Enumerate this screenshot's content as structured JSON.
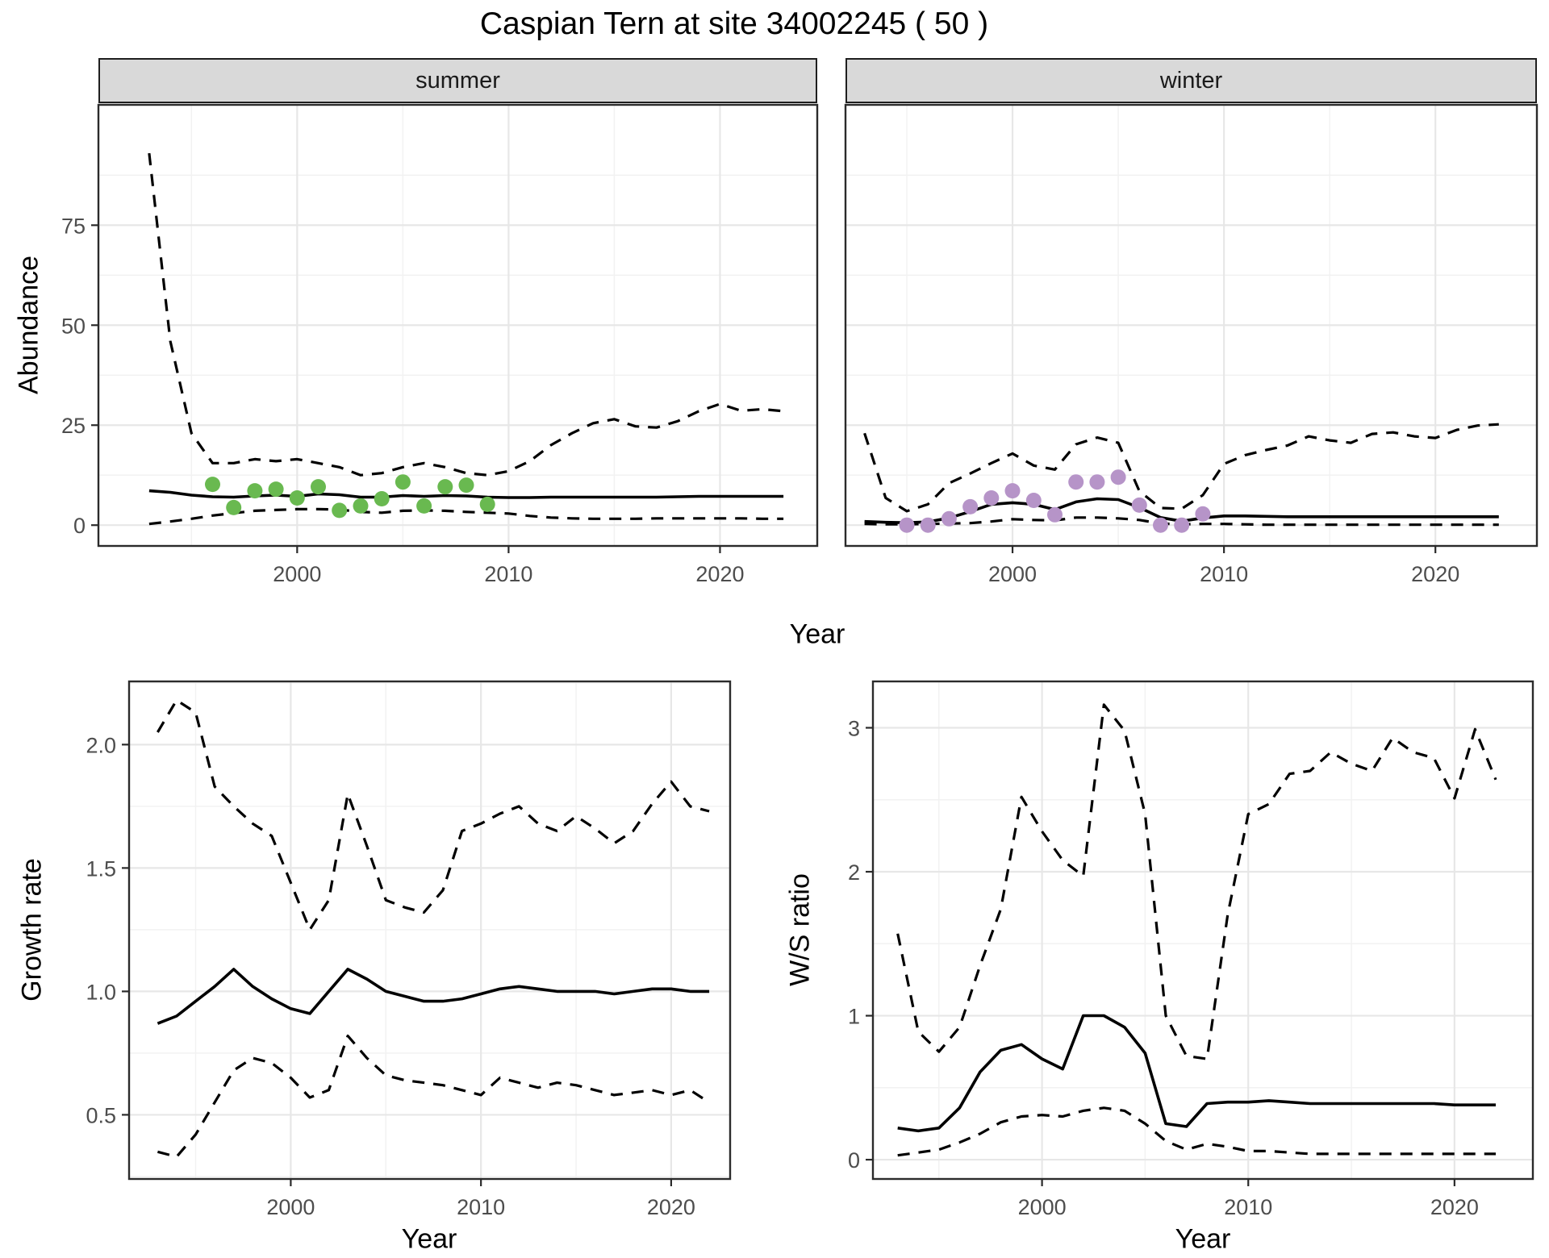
{
  "page": {
    "title": "Caspian Tern at site 34002245 ( 50 )",
    "background": "#ffffff"
  },
  "facets": {
    "summer": "summer",
    "winter": "winter"
  },
  "axis_titles": {
    "abundance": "Abundance",
    "year_top": "Year",
    "growth": "Growth rate",
    "ws": "W/S ratio",
    "year_bottom_left": "Year",
    "year_bottom_right": "Year"
  },
  "colors": {
    "summer_points": "#69b950",
    "winter_points": "#b694c8",
    "line": "#000000",
    "grid_major": "#e7e7e7",
    "grid_minor": "#f2f2f2",
    "panel_border": "#2b2b2b",
    "strip_fill": "#d9d9d9",
    "tick_label": "#4d4d4d"
  },
  "chart_data": [
    {
      "type": "line",
      "panel": "abundance-summer",
      "facet_label": "summer",
      "xlabel": "Year",
      "ylabel": "Abundance",
      "xlim": [
        1990.6,
        2024.6
      ],
      "ylim": [
        -5.2,
        105.1
      ],
      "xticks": {
        "values": [
          2000,
          2010,
          2020
        ],
        "labels": [
          "2000",
          "2010",
          "2020"
        ]
      },
      "yticks": {
        "values": [
          0,
          25,
          50,
          75
        ],
        "labels": [
          "0",
          "25",
          "50",
          "75"
        ]
      },
      "x_minor": [
        1995,
        2005,
        2015
      ],
      "y_minor": [
        12.5,
        37.5,
        62.5,
        87.5
      ],
      "x": [
        1993,
        1994,
        1995,
        1996,
        1997,
        1998,
        1999,
        2000,
        2001,
        2002,
        2003,
        2004,
        2005,
        2006,
        2007,
        2008,
        2009,
        2010,
        2011,
        2012,
        2013,
        2014,
        2015,
        2016,
        2017,
        2018,
        2019,
        2020,
        2021,
        2022,
        2023
      ],
      "series": [
        {
          "name": "upper-ci",
          "style": "dashed",
          "values": [
            93,
            46,
            23,
            15.5,
            15.5,
            16.5,
            16,
            16.5,
            15.5,
            14.5,
            12.5,
            13,
            14.5,
            15.5,
            14.5,
            13,
            12.5,
            13.5,
            16,
            20,
            23,
            25.5,
            26.5,
            24.7,
            24.4,
            26,
            28.5,
            30.3,
            28.6,
            29,
            28.5
          ]
        },
        {
          "name": "median",
          "style": "solid",
          "values": [
            8.6,
            8.2,
            7.5,
            7.1,
            7.0,
            7.3,
            7.5,
            7.2,
            7.8,
            7.6,
            7.0,
            7.0,
            7.4,
            7.2,
            7.4,
            7.3,
            7.0,
            6.9,
            6.9,
            7.0,
            7.0,
            7.0,
            7.0,
            7.0,
            7.0,
            7.1,
            7.2,
            7.2,
            7.2,
            7.2,
            7.2
          ]
        },
        {
          "name": "lower-ci",
          "style": "dashed",
          "values": [
            0.3,
            0.9,
            1.6,
            2.4,
            3.0,
            3.6,
            3.8,
            4.0,
            4.0,
            3.9,
            3.3,
            3.1,
            3.6,
            3.7,
            3.6,
            3.3,
            3.1,
            2.9,
            2.3,
            1.9,
            1.7,
            1.6,
            1.6,
            1.6,
            1.7,
            1.7,
            1.7,
            1.7,
            1.7,
            1.6,
            1.6
          ]
        }
      ],
      "points": {
        "name": "observed-counts",
        "color_key": "summer_points",
        "x": [
          1996,
          1997,
          1998,
          1999,
          2000,
          2001,
          2002,
          2003,
          2004,
          2005,
          2006,
          2007,
          2008,
          2009
        ],
        "y": [
          10.2,
          4.4,
          8.6,
          9.0,
          6.8,
          9.6,
          3.7,
          4.8,
          6.6,
          10.8,
          4.8,
          9.6,
          10.0,
          5.2
        ]
      }
    },
    {
      "type": "line",
      "panel": "abundance-winter",
      "facet_label": "winter",
      "xlabel": "Year",
      "ylabel": "Abundance",
      "xlim": [
        1992.1,
        2024.8
      ],
      "ylim": [
        -5.2,
        105.1
      ],
      "xticks": {
        "values": [
          2000,
          2010,
          2020
        ],
        "labels": [
          "2000",
          "2010",
          "2020"
        ]
      },
      "yticks": {
        "values": [
          0,
          25,
          50,
          75
        ],
        "labels": [
          "0",
          "25",
          "50",
          "75"
        ]
      },
      "x_minor": [
        1995,
        2005,
        2015
      ],
      "y_minor": [
        12.5,
        37.5,
        62.5,
        87.5
      ],
      "x": [
        1993,
        1994,
        1995,
        1996,
        1997,
        1998,
        1999,
        2000,
        2001,
        2002,
        2003,
        2004,
        2005,
        2006,
        2007,
        2008,
        2009,
        2010,
        2011,
        2012,
        2013,
        2014,
        2015,
        2016,
        2017,
        2018,
        2019,
        2020,
        2021,
        2022,
        2023
      ],
      "series": [
        {
          "name": "upper-ci",
          "style": "dashed",
          "values": [
            23,
            6.8,
            3.5,
            5.2,
            10.5,
            12.9,
            15.5,
            17.9,
            14.9,
            13.9,
            20.2,
            21.9,
            20.6,
            8.5,
            4.3,
            4.1,
            7.5,
            15.3,
            17.5,
            18.8,
            19.9,
            22.2,
            21.2,
            20.6,
            22.8,
            23.2,
            22.2,
            21.8,
            23.8,
            24.9,
            25.2
          ]
        },
        {
          "name": "median",
          "style": "solid",
          "values": [
            0.9,
            0.7,
            0.6,
            0.8,
            1.8,
            3.4,
            5.2,
            5.6,
            5.2,
            3.9,
            5.8,
            6.6,
            6.4,
            4.4,
            1.9,
            1.0,
            1.8,
            2.3,
            2.3,
            2.2,
            2.1,
            2.1,
            2.1,
            2.1,
            2.1,
            2.1,
            2.1,
            2.1,
            2.1,
            2.1,
            2.1
          ]
        },
        {
          "name": "lower-ci",
          "style": "dashed",
          "values": [
            0.3,
            0.2,
            0.2,
            0.3,
            0.4,
            0.5,
            0.9,
            1.5,
            1.3,
            1.2,
            1.9,
            1.9,
            1.7,
            1.3,
            0.4,
            0.2,
            0.3,
            0.3,
            0.2,
            0.1,
            0.1,
            0.1,
            0.1,
            0.1,
            0.1,
            0.1,
            0.1,
            0.1,
            0.1,
            0.1,
            0.1
          ]
        }
      ],
      "points": {
        "name": "observed-counts",
        "color_key": "winter_points",
        "x": [
          1995,
          1996,
          1997,
          1998,
          1999,
          2000,
          2001,
          2002,
          2003,
          2004,
          2005,
          2006,
          2007,
          2008,
          2009
        ],
        "y": [
          0,
          0,
          1.6,
          4.6,
          6.8,
          8.6,
          6.2,
          2.6,
          10.8,
          10.8,
          12.0,
          5.0,
          0,
          0,
          2.8
        ]
      }
    },
    {
      "type": "line",
      "panel": "growth-rate",
      "facet_label": "",
      "xlabel": "Year",
      "ylabel": "Growth rate",
      "xlim": [
        1991.5,
        2023.1
      ],
      "ylim": [
        0.24,
        2.256
      ],
      "xticks": {
        "values": [
          2000,
          2010,
          2020
        ],
        "labels": [
          "2000",
          "2010",
          "2020"
        ]
      },
      "yticks": {
        "values": [
          0.5,
          1.0,
          1.5,
          2.0
        ],
        "labels": [
          "0.5",
          "1.0",
          "1.5",
          "2.0"
        ]
      },
      "x_minor": [
        1995,
        2005,
        2015
      ],
      "y_minor": [
        0.25,
        0.75,
        1.25,
        1.75,
        2.25
      ],
      "x": [
        1993,
        1994,
        1995,
        1996,
        1997,
        1998,
        1999,
        2000,
        2001,
        2002,
        2003,
        2004,
        2005,
        2006,
        2007,
        2008,
        2009,
        2010,
        2011,
        2012,
        2013,
        2014,
        2015,
        2016,
        2017,
        2018,
        2019,
        2020,
        2021,
        2022
      ],
      "series": [
        {
          "name": "upper-ci",
          "style": "dashed",
          "values": [
            2.05,
            2.18,
            2.13,
            1.83,
            1.75,
            1.68,
            1.63,
            1.44,
            1.25,
            1.37,
            1.8,
            1.59,
            1.37,
            1.34,
            1.32,
            1.41,
            1.65,
            1.68,
            1.72,
            1.75,
            1.68,
            1.65,
            1.71,
            1.66,
            1.6,
            1.65,
            1.76,
            1.85,
            1.75,
            1.73
          ]
        },
        {
          "name": "median",
          "style": "solid",
          "values": [
            0.87,
            0.9,
            0.96,
            1.02,
            1.09,
            1.02,
            0.97,
            0.93,
            0.91,
            1.0,
            1.09,
            1.05,
            1.0,
            0.98,
            0.96,
            0.96,
            0.97,
            0.99,
            1.01,
            1.02,
            1.01,
            1.0,
            1.0,
            1.0,
            0.99,
            1.0,
            1.01,
            1.01,
            1.0,
            1.0
          ]
        },
        {
          "name": "lower-ci",
          "style": "dashed",
          "values": [
            0.35,
            0.33,
            0.42,
            0.55,
            0.68,
            0.73,
            0.71,
            0.65,
            0.57,
            0.6,
            0.82,
            0.73,
            0.66,
            0.64,
            0.63,
            0.62,
            0.6,
            0.58,
            0.65,
            0.63,
            0.61,
            0.63,
            0.62,
            0.6,
            0.58,
            0.59,
            0.6,
            0.58,
            0.6,
            0.55
          ]
        }
      ],
      "points": null
    },
    {
      "type": "line",
      "panel": "ws-ratio",
      "facet_label": "",
      "xlabel": "Year",
      "ylabel": "W/S ratio",
      "xlim": [
        1991.8,
        2023.8
      ],
      "ylim": [
        -0.134,
        3.322
      ],
      "xticks": {
        "values": [
          2000,
          2010,
          2020
        ],
        "labels": [
          "2000",
          "2010",
          "2020"
        ]
      },
      "yticks": {
        "values": [
          0,
          1,
          2,
          3
        ],
        "labels": [
          "0",
          "1",
          "2",
          "3"
        ]
      },
      "x_minor": [
        1995,
        2005,
        2015
      ],
      "y_minor": [
        0.5,
        1.5,
        2.5
      ],
      "x": [
        1993,
        1994,
        1995,
        1996,
        1997,
        1998,
        1999,
        2000,
        2001,
        2002,
        2003,
        2004,
        2005,
        2006,
        2007,
        2008,
        2009,
        2010,
        2011,
        2012,
        2013,
        2014,
        2015,
        2016,
        2017,
        2018,
        2019,
        2020,
        2021,
        2022
      ],
      "series": [
        {
          "name": "upper-ci",
          "style": "dashed",
          "values": [
            1.57,
            0.89,
            0.75,
            0.92,
            1.35,
            1.74,
            2.52,
            2.28,
            2.08,
            1.97,
            3.16,
            2.98,
            2.4,
            1.0,
            0.72,
            0.7,
            1.7,
            2.4,
            2.47,
            2.68,
            2.7,
            2.83,
            2.75,
            2.7,
            2.93,
            2.83,
            2.79,
            2.51,
            2.99,
            2.64
          ]
        },
        {
          "name": "median",
          "style": "solid",
          "values": [
            0.22,
            0.2,
            0.22,
            0.36,
            0.61,
            0.76,
            0.8,
            0.7,
            0.63,
            1.0,
            1.0,
            0.92,
            0.74,
            0.25,
            0.23,
            0.39,
            0.4,
            0.4,
            0.41,
            0.4,
            0.39,
            0.39,
            0.39,
            0.39,
            0.39,
            0.39,
            0.39,
            0.38,
            0.38,
            0.38
          ]
        },
        {
          "name": "lower-ci",
          "style": "dashed",
          "values": [
            0.03,
            0.05,
            0.07,
            0.12,
            0.18,
            0.26,
            0.3,
            0.31,
            0.3,
            0.34,
            0.36,
            0.34,
            0.25,
            0.13,
            0.07,
            0.11,
            0.09,
            0.06,
            0.06,
            0.05,
            0.04,
            0.04,
            0.04,
            0.04,
            0.04,
            0.04,
            0.04,
            0.04,
            0.04,
            0.04
          ]
        }
      ],
      "points": null
    }
  ]
}
